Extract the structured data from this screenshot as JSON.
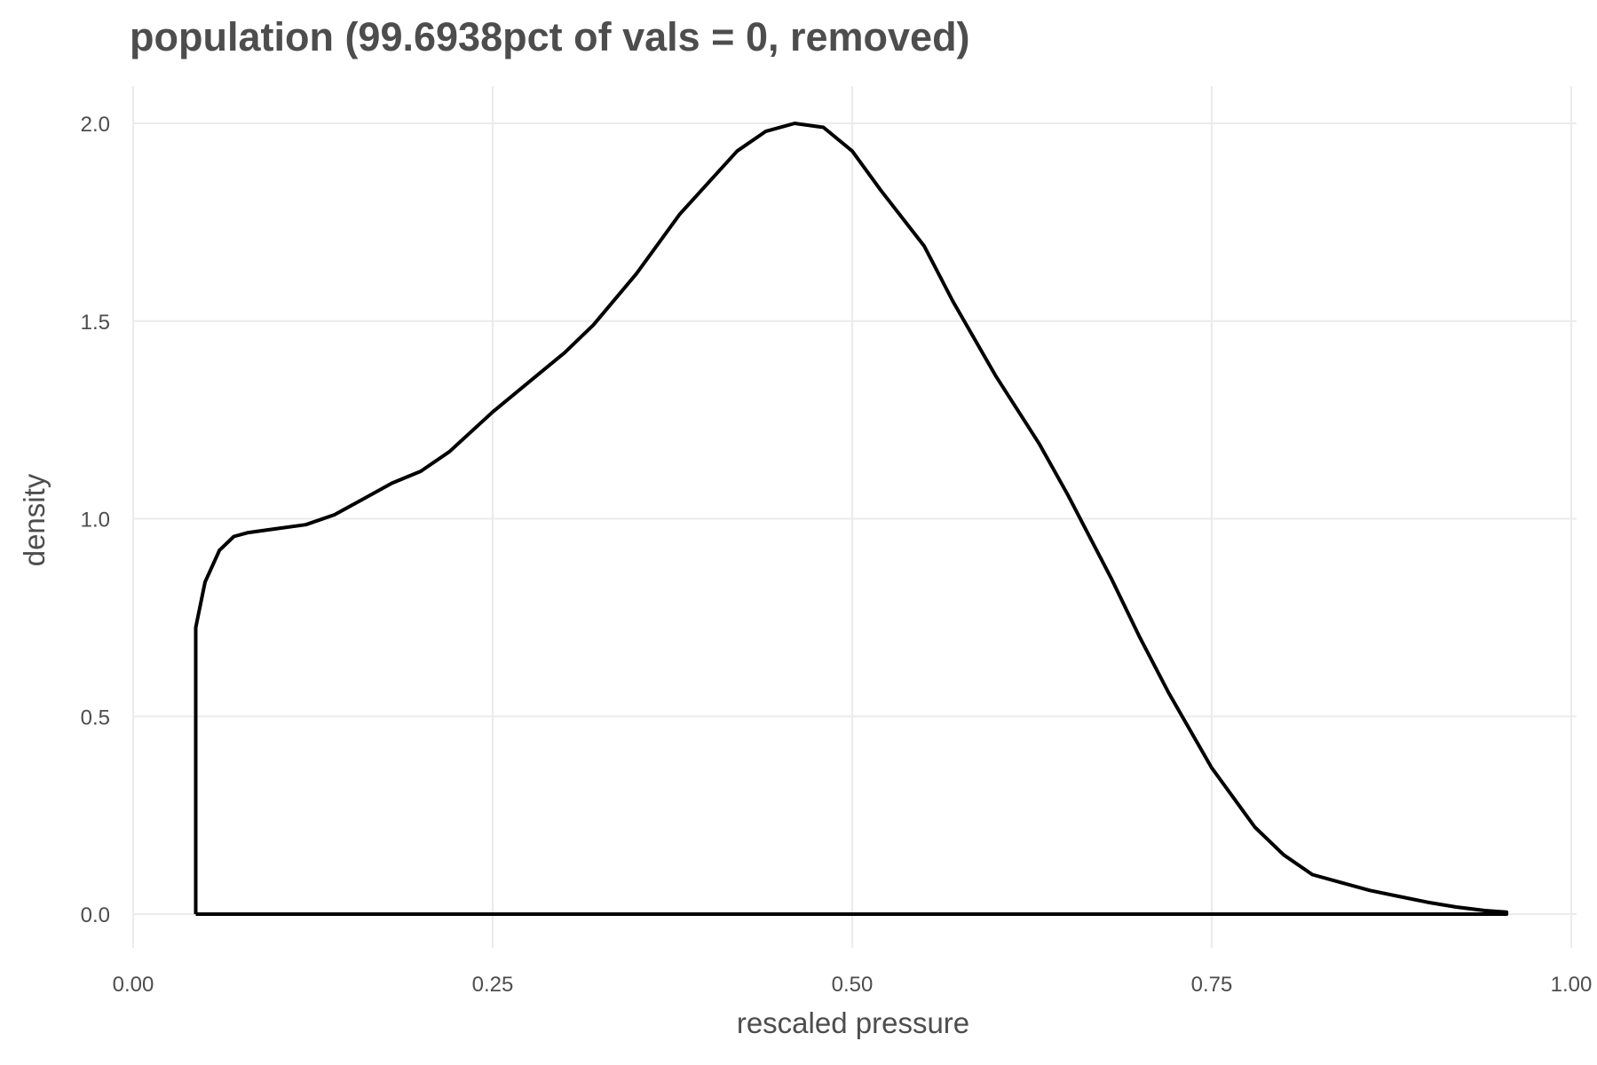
{
  "chart_data": {
    "type": "line",
    "title": "population (99.6938pct of vals = 0, removed)",
    "xlabel": "rescaled pressure",
    "ylabel": "density",
    "xlim": [
      0.0,
      1.0
    ],
    "ylim": [
      0.0,
      2.0
    ],
    "x_ticks": [
      0.0,
      0.25,
      0.5,
      0.75,
      1.0
    ],
    "x_tick_labels": [
      "0.00",
      "0.25",
      "0.50",
      "0.75",
      "1.00"
    ],
    "y_ticks": [
      0.0,
      0.5,
      1.0,
      1.5,
      2.0
    ],
    "y_tick_labels": [
      "0.0",
      "0.5",
      "1.0",
      "1.5",
      "2.0"
    ],
    "grid": true,
    "legend": "none",
    "line_color": "#000000",
    "series": [
      {
        "x": [
          0.0435,
          0.0435,
          0.05,
          0.06,
          0.07,
          0.08,
          0.1,
          0.12,
          0.14,
          0.16,
          0.18,
          0.2,
          0.22,
          0.25,
          0.28,
          0.3,
          0.32,
          0.35,
          0.38,
          0.4,
          0.42,
          0.44,
          0.46,
          0.48,
          0.5,
          0.52,
          0.55,
          0.57,
          0.6,
          0.63,
          0.65,
          0.68,
          0.7,
          0.72,
          0.75,
          0.78,
          0.8,
          0.82,
          0.84,
          0.86,
          0.88,
          0.9,
          0.92,
          0.94,
          0.955,
          0.955,
          0.0435
        ],
        "y": [
          0.0,
          0.725,
          0.84,
          0.92,
          0.955,
          0.965,
          0.975,
          0.985,
          1.01,
          1.05,
          1.09,
          1.12,
          1.17,
          1.27,
          1.36,
          1.42,
          1.49,
          1.62,
          1.77,
          1.85,
          1.93,
          1.98,
          2.0,
          1.99,
          1.93,
          1.83,
          1.69,
          1.55,
          1.36,
          1.19,
          1.06,
          0.85,
          0.7,
          0.56,
          0.37,
          0.22,
          0.15,
          0.1,
          0.08,
          0.06,
          0.045,
          0.03,
          0.018,
          0.009,
          0.005,
          0.0,
          0.0
        ]
      }
    ]
  }
}
